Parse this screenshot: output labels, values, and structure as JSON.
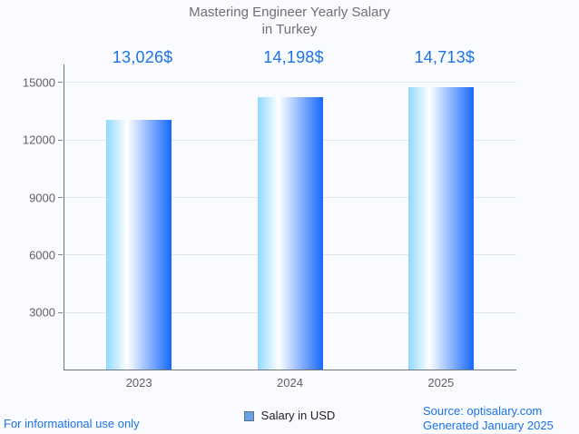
{
  "chart_data": {
    "type": "bar",
    "title_line1": "Mastering Engineer Yearly Salary",
    "title_line2": "in Turkey",
    "categories": [
      "2023",
      "2024",
      "2025"
    ],
    "values": [
      13026,
      14198,
      14713
    ],
    "value_labels": [
      "13,026$",
      "14,198$",
      "14,713$"
    ],
    "series_name": "Salary in USD",
    "xlabel": "",
    "ylabel": "",
    "ylim": [
      0,
      15000
    ],
    "yticks": [
      3000,
      6000,
      9000,
      12000,
      15000
    ],
    "grid": true,
    "legend_position": "bottom",
    "colors": {
      "value_label": "#1a73e8",
      "bar_gradient_left": "#8fd9fc",
      "bar_gradient_mid": "#ffffff",
      "bar_gradient_right": "#1768fc",
      "legend_marker_fill": "#69a1e6",
      "axis_text": "#616161",
      "title_text": "#6f6f6f"
    }
  },
  "footer": {
    "disclaimer": "For informational use only",
    "source": "Source: optisalary.com",
    "generated": "Generated January 2025"
  }
}
